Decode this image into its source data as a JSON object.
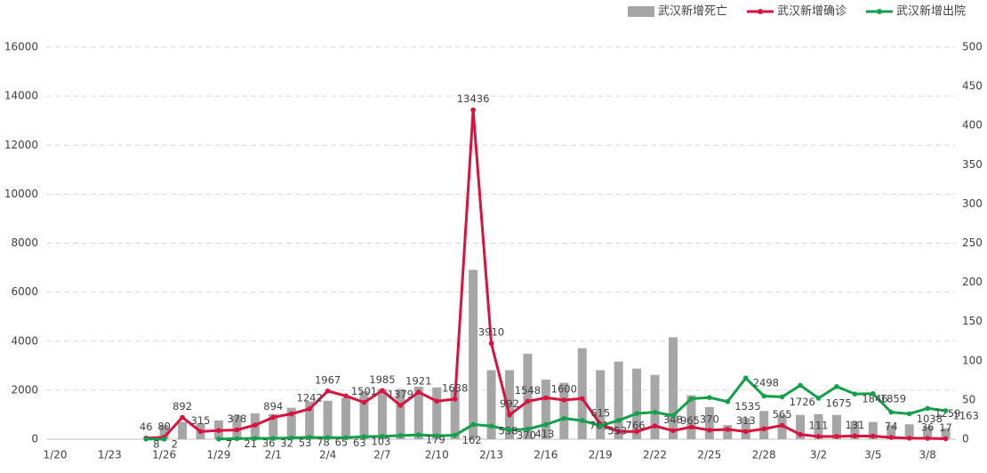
{
  "chart_data": {
    "type": "bar-line",
    "categories": [
      "1/20",
      null,
      null,
      "1/23",
      null,
      null,
      "1/26",
      null,
      null,
      "1/29",
      null,
      null,
      "2/1",
      null,
      null,
      "2/4",
      null,
      null,
      "2/7",
      null,
      null,
      "2/10",
      null,
      null,
      "2/13",
      null,
      null,
      "2/16",
      null,
      null,
      "2/19",
      null,
      null,
      "2/22",
      null,
      null,
      "2/25",
      null,
      null,
      "2/28",
      null,
      null,
      "3/2",
      null,
      null,
      "3/5",
      null,
      null,
      "3/8",
      null
    ],
    "ylim": [
      0,
      16000
    ],
    "yticks": [
      0,
      2000,
      4000,
      6000,
      8000,
      10000,
      12000,
      14000,
      16000
    ],
    "y2lim": [
      0,
      500
    ],
    "y2ticks": [
      0,
      50,
      100,
      150,
      200,
      250,
      300,
      350,
      400,
      450,
      500
    ],
    "grid": true,
    "legend": "top-right",
    "series": [
      {
        "name": "武汉新增死亡",
        "kind": "bar",
        "axis": "y2",
        "color": "#a6a6a6",
        "values": [
          null,
          null,
          null,
          null,
          null,
          null,
          18,
          22,
          20,
          24,
          30,
          33,
          32,
          40,
          48,
          49,
          53,
          61,
          64,
          64,
          67,
          66,
          63,
          216,
          88,
          88,
          109,
          76,
          72,
          116,
          88,
          99,
          90,
          82,
          130,
          56,
          41,
          18,
          27,
          36,
          31,
          31,
          32,
          31,
          23,
          22,
          18,
          19,
          16,
          14
        ]
      },
      {
        "name": "武汉新增确诊",
        "kind": "line",
        "color": "#d9123e",
        "values": [
          null,
          null,
          null,
          null,
          null,
          46,
          80,
          892,
          315,
          356,
          378,
          576,
          894,
          1033,
          1242,
          1967,
          1766,
          1501,
          1985,
          1379,
          1921,
          1552,
          1638,
          13436,
          3910,
          992,
          1548,
          1690,
          1600,
          1660,
          615,
          319,
          314,
          542,
          348,
          499,
          370,
          401,
          313,
          423,
          565,
          193,
          111,
          114,
          131,
          126,
          74,
          41,
          36,
          17
        ],
        "value_labels": [
          null,
          null,
          null,
          null,
          null,
          "46",
          "80",
          "892",
          "315",
          null,
          "378",
          null,
          "894",
          null,
          "1242",
          "1967",
          null,
          "1501",
          "1985",
          "1379",
          "1921",
          null,
          "1638",
          "13436",
          "3910",
          "992",
          "1548",
          null,
          "1600",
          null,
          "615",
          null,
          null,
          null,
          "348",
          null,
          "370",
          null,
          "313",
          null,
          "565",
          null,
          "111",
          null,
          "131",
          null,
          "74",
          null,
          "36",
          "17"
        ]
      },
      {
        "name": "武汉新增出院",
        "kind": "line",
        "color": "#12a04a",
        "values": [
          null,
          null,
          null,
          null,
          null,
          8,
          2,
          null,
          null,
          7,
          21,
          36,
          32,
          53,
          78,
          65,
          63,
          103,
          120,
          150,
          179,
          140,
          162,
          600,
          538,
          370,
          413,
          600,
          850,
          761,
          553,
          766,
          1050,
          1100,
          965,
          1650,
          1700,
          1535,
          2498,
          1760,
          1726,
          2200,
          1675,
          2150,
          1846,
          1859,
          1100,
          1038,
          1259,
          1163
        ],
        "value_labels": [
          null,
          null,
          null,
          null,
          null,
          "8",
          "2",
          null,
          null,
          "7",
          "21",
          "36",
          "32",
          "53",
          "78",
          "65",
          "63",
          "103",
          null,
          null,
          "179",
          null,
          "162",
          null,
          "538",
          "370",
          "413",
          null,
          null,
          "761",
          "553",
          "766",
          null,
          null,
          "965",
          null,
          null,
          "1535",
          "2498",
          null,
          "1726",
          null,
          "1675",
          null,
          "1846",
          "1859",
          null,
          "1038",
          "1259",
          "1163"
        ]
      }
    ]
  }
}
